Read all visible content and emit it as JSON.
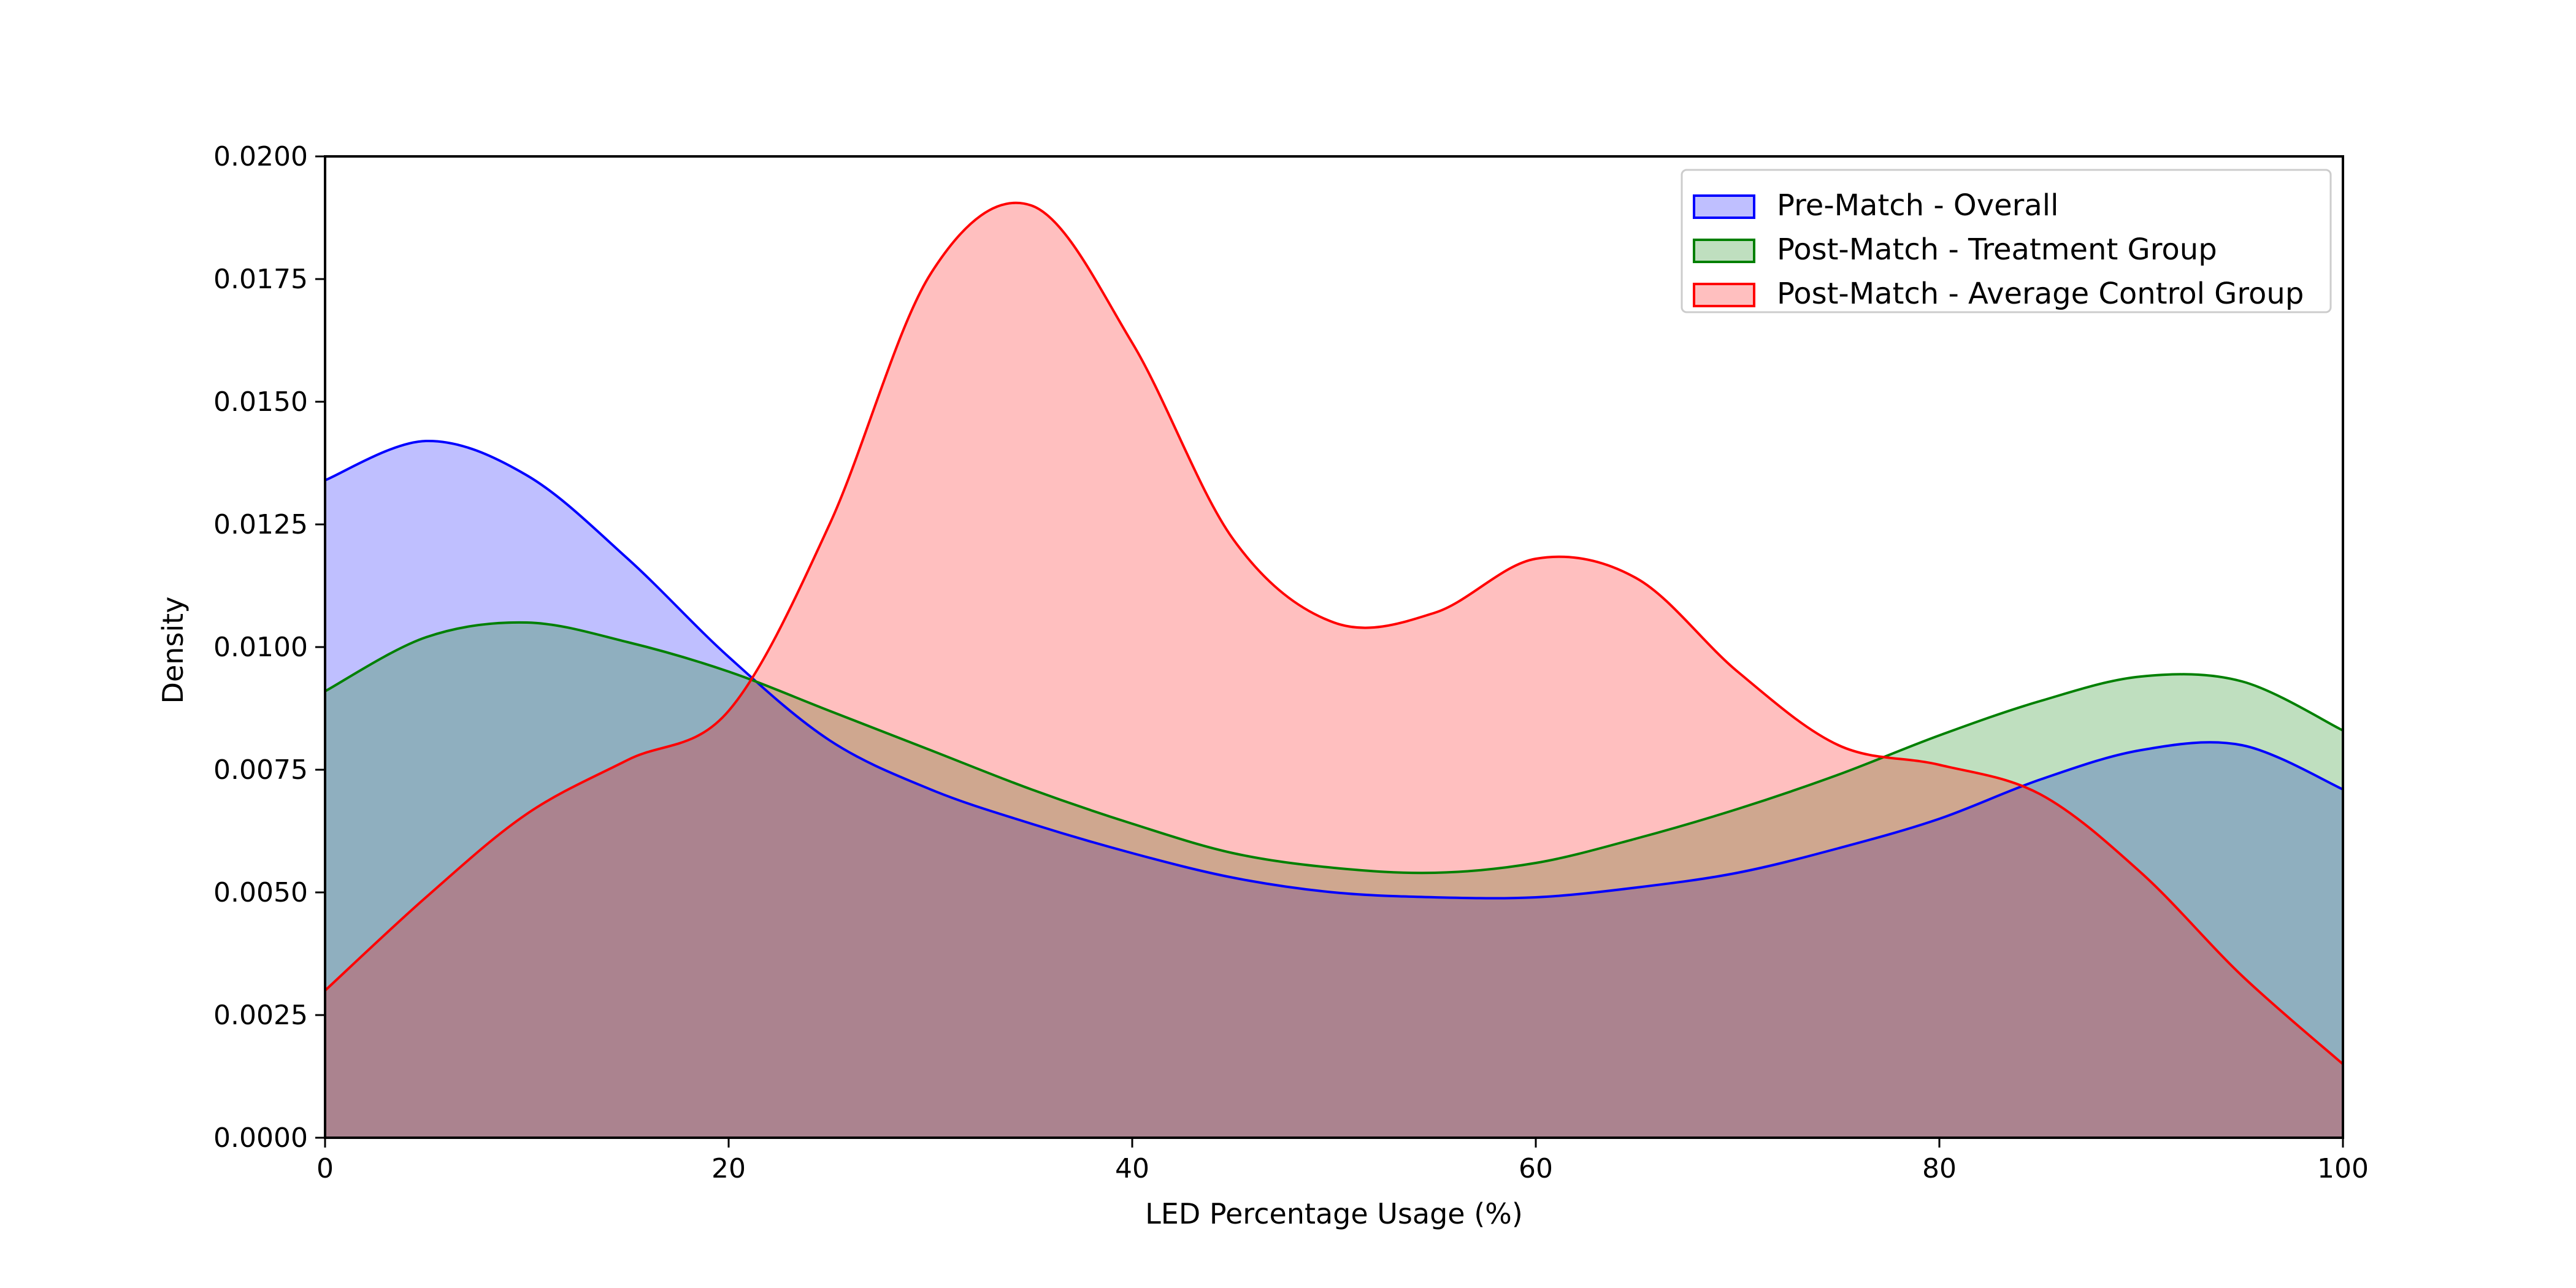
{
  "chart_data": {
    "type": "area",
    "title": "",
    "xlabel": "LED Percentage Usage (%)",
    "ylabel": "Density",
    "xlim": [
      0,
      100
    ],
    "ylim": [
      0,
      0.02
    ],
    "xticks": [
      "0",
      "20",
      "40",
      "60",
      "80",
      "100"
    ],
    "yticks": [
      "0.0000",
      "0.0025",
      "0.0050",
      "0.0075",
      "0.0100",
      "0.0125",
      "0.0150",
      "0.0175",
      "0.0200"
    ],
    "grid": false,
    "legend_position": "top-right",
    "x": [
      0,
      5,
      10,
      15,
      20,
      25,
      30,
      35,
      40,
      45,
      50,
      55,
      60,
      65,
      70,
      75,
      80,
      85,
      90,
      95,
      100
    ],
    "series": [
      {
        "name": "Pre-Match - Overall",
        "line_color": "#0000ff",
        "fill_color": "#0000ff",
        "values": [
          0.0134,
          0.0142,
          0.0135,
          0.0118,
          0.0098,
          0.0081,
          0.0071,
          0.0064,
          0.0058,
          0.0053,
          0.005,
          0.0049,
          0.0049,
          0.0051,
          0.0054,
          0.0059,
          0.0065,
          0.0073,
          0.0079,
          0.008,
          0.0071
        ]
      },
      {
        "name": "Post-Match - Treatment Group",
        "line_color": "#008000",
        "fill_color": "#008000",
        "values": [
          0.0091,
          0.0102,
          0.0105,
          0.0101,
          0.0095,
          0.0087,
          0.0079,
          0.0071,
          0.0064,
          0.0058,
          0.0055,
          0.0054,
          0.0056,
          0.0061,
          0.0067,
          0.0074,
          0.0082,
          0.0089,
          0.0094,
          0.0093,
          0.0083
        ]
      },
      {
        "name": "Post-Match - Average Control Group",
        "line_color": "#ff0000",
        "fill_color": "#ff0000",
        "values": [
          0.003,
          0.0049,
          0.0066,
          0.0077,
          0.0087,
          0.0125,
          0.0176,
          0.019,
          0.0162,
          0.0122,
          0.0105,
          0.0107,
          0.0118,
          0.0114,
          0.0095,
          0.008,
          0.0076,
          0.007,
          0.0054,
          0.0033,
          0.0015
        ]
      }
    ]
  }
}
